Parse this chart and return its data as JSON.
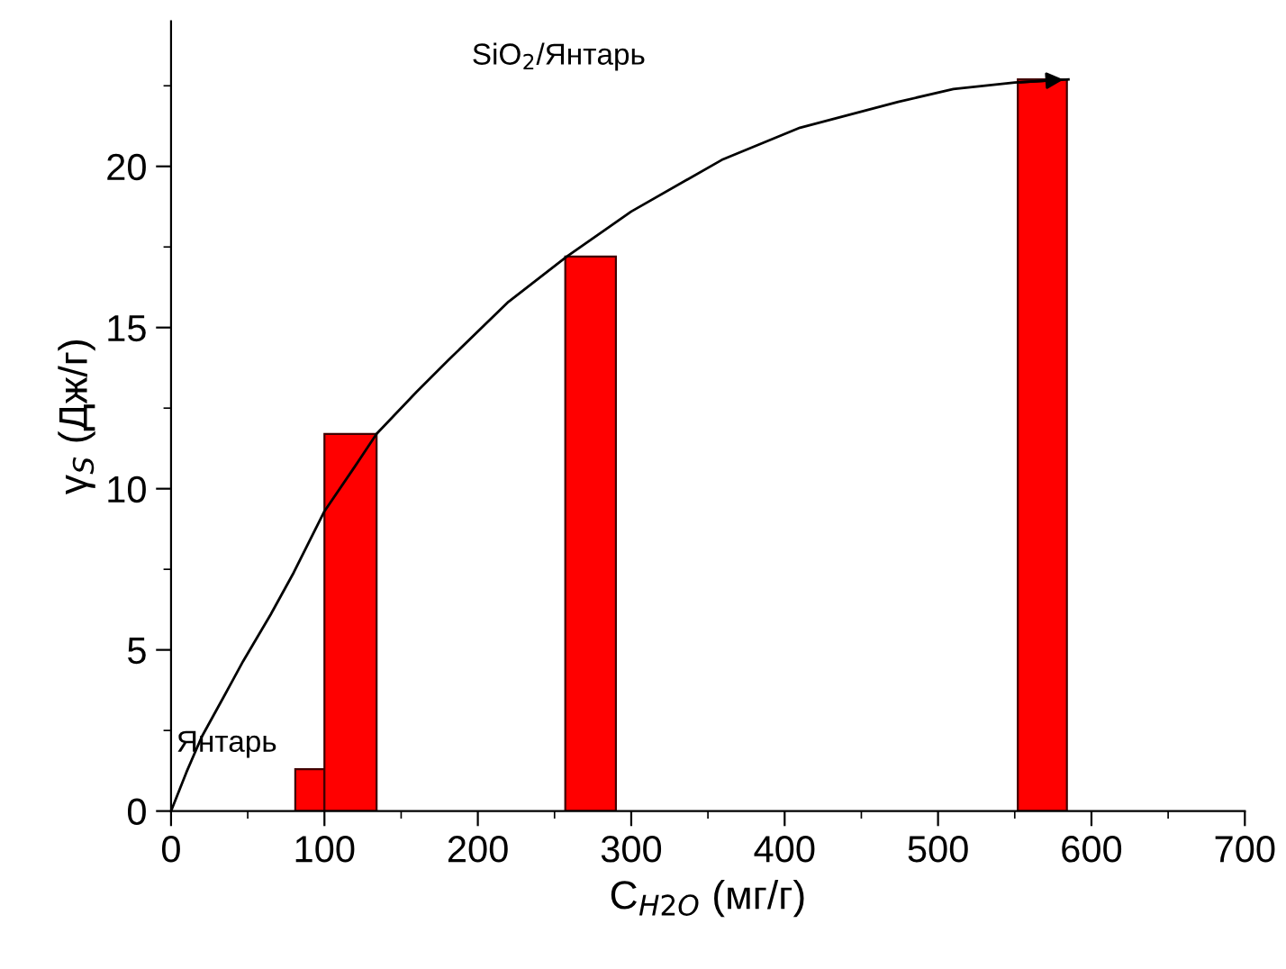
{
  "chart_data": {
    "type": "histogram",
    "xlabel": "C$_{H2O}$ (мг/г)",
    "ylabel": "γ$_{S}$ (Дж/г)",
    "bins": [
      81,
      100,
      134,
      257,
      290,
      552,
      584
    ],
    "values": [
      1.3,
      11.7,
      null,
      17.2,
      null,
      22.7
    ],
    "color": "#ff0000",
    "series": [
      {
        "type": "line",
        "color": "#000000",
        "x": [
          0,
          10,
          20,
          35,
          47,
          65,
          80,
          100,
          120,
          134,
          160,
          181,
          220,
          258,
          300,
          359,
          410,
          474,
          510,
          550,
          585
        ],
        "values": [
          0,
          1.2,
          2.3,
          3.6,
          4.65,
          6.1,
          7.4,
          9.3,
          10.7,
          11.7,
          13.0,
          14.0,
          15.8,
          17.2,
          18.6,
          20.2,
          21.2,
          22.0,
          22.4,
          22.6,
          22.7
        ]
      }
    ],
    "annotations": [
      "Янтарь",
      "SiO$_{2}$/Янтарь"
    ],
    "xlim": [
      0,
      700
    ],
    "ylim": [
      0,
      24.5
    ],
    "xticks": [
      0,
      100,
      200,
      300,
      400,
      500,
      600,
      700
    ],
    "yticks": [
      0,
      5,
      10,
      15,
      20
    ],
    "grid": false,
    "legend": false
  }
}
